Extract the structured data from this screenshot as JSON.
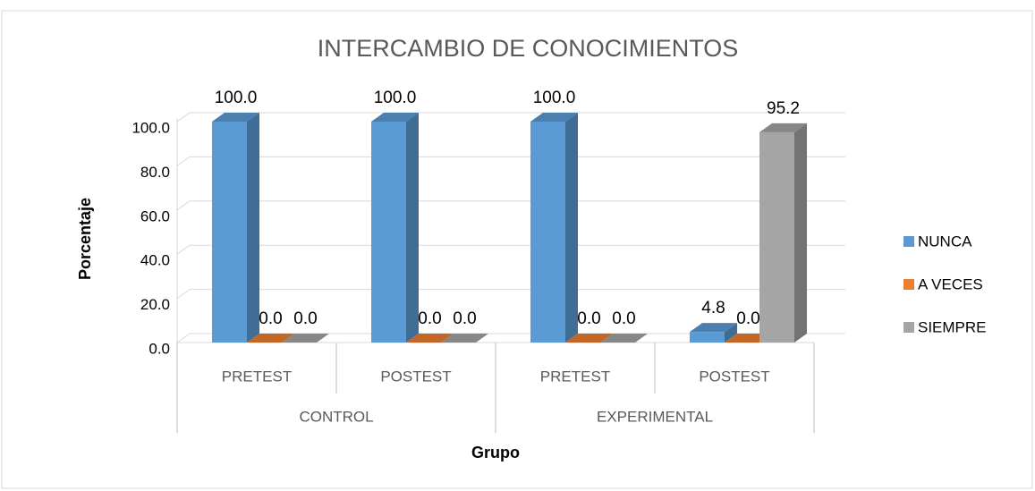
{
  "chart_data": {
    "type": "bar3d",
    "title": "INTERCAMBIO DE CONOCIMIENTOS",
    "xlabel": "Grupo",
    "ylabel": "Porcentaje",
    "categories": [
      "PRETEST",
      "POSTEST",
      "PRETEST",
      "POSTEST"
    ],
    "groups": [
      {
        "name": "CONTROL",
        "span": [
          0,
          1
        ]
      },
      {
        "name": "EXPERIMENTAL",
        "span": [
          2,
          3
        ]
      }
    ],
    "series": [
      {
        "name": "NUNCA",
        "color": "#5b9bd5",
        "values": [
          100,
          100,
          100,
          4.8
        ],
        "value_labels": [
          "100.0",
          "100.0",
          "100.0",
          "4.8"
        ]
      },
      {
        "name": "A VECES",
        "color": "#ed7d31",
        "values": [
          0,
          0,
          0,
          0
        ],
        "value_labels": [
          "0.0",
          "0.0",
          "0.0",
          "0.0"
        ]
      },
      {
        "name": "SIEMPRE",
        "color": "#a5a5a5",
        "values": [
          0,
          0,
          0,
          95.2
        ],
        "value_labels": [
          "0.0",
          "0.0",
          "0.0",
          "95.2"
        ]
      }
    ],
    "ylim": [
      0,
      100
    ],
    "yticks": [
      {
        "value": 0,
        "label": "0.0"
      },
      {
        "value": 20,
        "label": "20.0"
      },
      {
        "value": 40,
        "label": "40.0"
      },
      {
        "value": 60,
        "label": "60.0"
      },
      {
        "value": 80,
        "label": "80.0"
      },
      {
        "value": 100,
        "label": "100.0"
      }
    ],
    "grid": true,
    "legend": "right"
  }
}
